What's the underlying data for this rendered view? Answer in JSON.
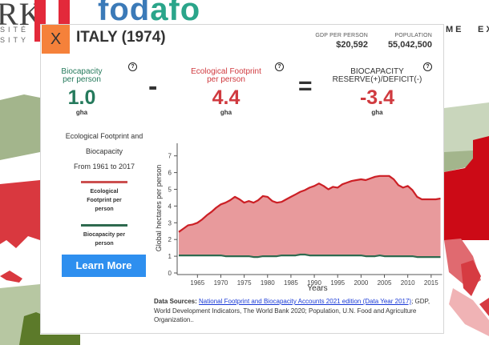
{
  "header": {
    "logo_left_text": "RK",
    "logo_left_sub1": "SITÉ",
    "logo_left_sub2": "SITY",
    "brand_part1": "fod",
    "brand_part2": "afo",
    "nav_items": [
      {
        "label": "ME"
      },
      {
        "label": "EX"
      }
    ]
  },
  "modal": {
    "close_label": "X",
    "title": "ITALY (1974)",
    "gdp": {
      "label": "GDP PER PERSON",
      "value": "$20,592"
    },
    "population": {
      "label": "POPULATION",
      "value": "55,042,500"
    },
    "biocapacity": {
      "label_line1": "Biocapacity",
      "label_line2": "per person",
      "value": "1.0",
      "unit": "gha",
      "help": "?"
    },
    "footprint": {
      "label_line1": "Ecological Footprint",
      "label_line2": "per person",
      "value": "4.4",
      "unit": "gha",
      "help": "?"
    },
    "reserve": {
      "label_line1": "BIOCAPACITY",
      "label_line2": "RESERVE(+)/DEFICIT(-)",
      "value": "-3.4",
      "unit": "gha",
      "help": "?"
    },
    "minus_op": "-",
    "equals_op": "=",
    "legend": {
      "title_line1": "Ecological Footprint and",
      "title_line2": "Biocapacity",
      "title_line3": "From 1961 to 2017",
      "footprint_label_1": "Ecological",
      "footprint_label_2": "Footprint per",
      "footprint_label_3": "person",
      "biocap_label_1": "Biocapacity per",
      "biocap_label_2": "person"
    },
    "learn_more_label": "Learn More",
    "sources": {
      "prefix": "Data Sources:",
      "link_text": "National Footprint and Biocapacity Accounts 2021 edition (Data Year 2017)",
      "rest": "; GDP, World Development Indicators, The World Bank 2020; Population, U.N. Food and Agriculture Organization.."
    }
  },
  "colors": {
    "footprint_line": "#cc1f25",
    "footprint_fill": "#e89a9c",
    "biocapacity_line": "#2e6a4f",
    "close_button": "#f5813a",
    "learn_more": "#2e8fef",
    "biocap_text": "#257a5c",
    "footprint_text": "#d03a3f"
  },
  "chart_data": {
    "type": "area",
    "title": "Ecological Footprint and Biocapacity From 1961 to 2017",
    "xlabel": "Years",
    "ylabel": "Global hectares per person",
    "xlim": [
      1961,
      2017
    ],
    "ylim": [
      0,
      7.5
    ],
    "x_ticks": [
      1965,
      1970,
      1975,
      1980,
      1985,
      1990,
      1995,
      2000,
      2005,
      2010,
      2015
    ],
    "y_ticks": [
      0,
      1,
      2,
      3,
      4,
      5,
      6,
      7
    ],
    "grid": false,
    "x": [
      1961,
      1962,
      1963,
      1964,
      1965,
      1966,
      1967,
      1968,
      1969,
      1970,
      1971,
      1972,
      1973,
      1974,
      1975,
      1976,
      1977,
      1978,
      1979,
      1980,
      1981,
      1982,
      1983,
      1984,
      1985,
      1986,
      1987,
      1988,
      1989,
      1990,
      1991,
      1992,
      1993,
      1994,
      1995,
      1996,
      1997,
      1998,
      1999,
      2000,
      2001,
      2002,
      2003,
      2004,
      2005,
      2006,
      2007,
      2008,
      2009,
      2010,
      2011,
      2012,
      2013,
      2014,
      2015,
      2016,
      2017
    ],
    "series": [
      {
        "name": "Ecological Footprint per person",
        "values": [
          2.45,
          2.65,
          2.85,
          2.9,
          3.0,
          3.2,
          3.45,
          3.65,
          3.9,
          4.1,
          4.2,
          4.35,
          4.55,
          4.4,
          4.2,
          4.3,
          4.2,
          4.35,
          4.6,
          4.55,
          4.3,
          4.2,
          4.25,
          4.4,
          4.55,
          4.7,
          4.85,
          4.95,
          5.1,
          5.2,
          5.35,
          5.2,
          5.0,
          5.15,
          5.1,
          5.3,
          5.4,
          5.5,
          5.55,
          5.6,
          5.55,
          5.65,
          5.75,
          5.8,
          5.8,
          5.8,
          5.6,
          5.25,
          5.1,
          5.2,
          4.95,
          4.55,
          4.4,
          4.4,
          4.4,
          4.4,
          4.45
        ]
      },
      {
        "name": "Biocapacity per person",
        "values": [
          1.05,
          1.05,
          1.05,
          1.05,
          1.05,
          1.05,
          1.05,
          1.05,
          1.05,
          1.05,
          1.0,
          1.0,
          1.0,
          1.0,
          1.0,
          1.0,
          0.95,
          0.95,
          1.0,
          1.0,
          1.0,
          1.0,
          1.05,
          1.05,
          1.05,
          1.05,
          1.1,
          1.1,
          1.05,
          1.05,
          1.05,
          1.05,
          1.05,
          1.05,
          1.05,
          1.05,
          1.05,
          1.05,
          1.05,
          1.05,
          1.0,
          1.0,
          1.0,
          1.05,
          1.0,
          1.0,
          1.0,
          1.0,
          1.0,
          1.0,
          1.0,
          0.95,
          0.95,
          0.95,
          0.95,
          0.95,
          0.95
        ]
      }
    ],
    "legend_position": "left"
  }
}
